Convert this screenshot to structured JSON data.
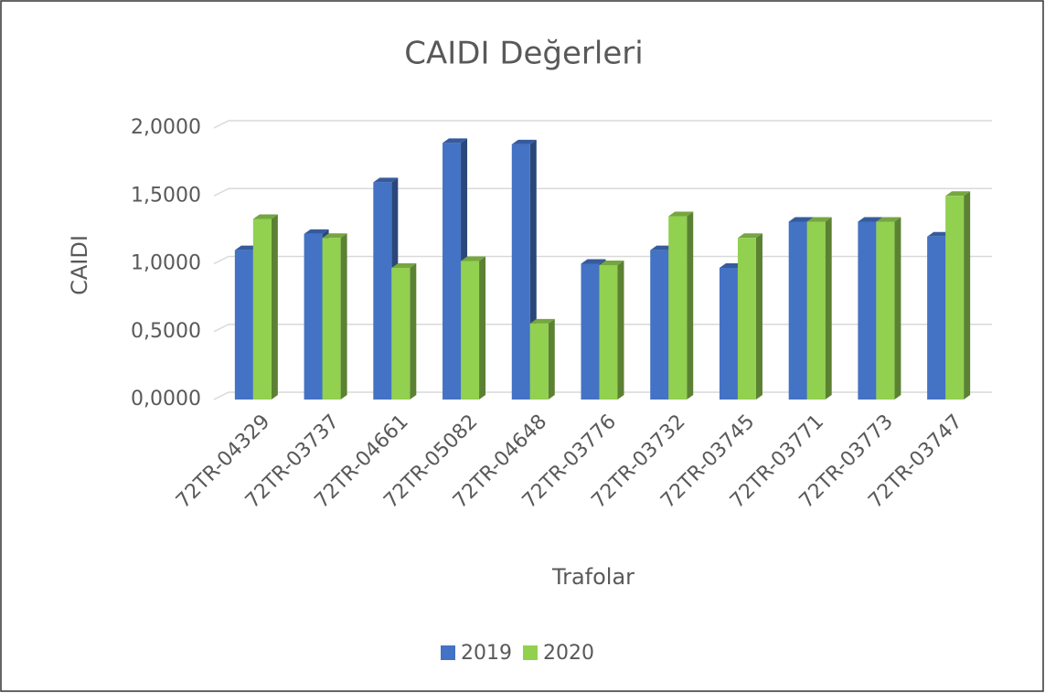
{
  "chart_data": {
    "type": "bar3d",
    "title": "CAIDI Değerleri",
    "x_label": "Trafolar",
    "y_label": "CAIDI",
    "categories": [
      "72TR-04329",
      "72TR-03737",
      "72TR-04661",
      "72TR-05082",
      "72TR-04648",
      "72TR-03776",
      "72TR-03732",
      "72TR-03745",
      "72TR-03771",
      "72TR-03773",
      "72TR-03747"
    ],
    "series": [
      {
        "name": "2019",
        "color": "#4472c4",
        "values": [
          1.1,
          1.22,
          1.6,
          1.89,
          1.88,
          1.0,
          1.1,
          0.97,
          1.31,
          1.31,
          1.2
        ]
      },
      {
        "name": "2020",
        "color": "#92d050",
        "values": [
          1.33,
          1.19,
          0.97,
          1.02,
          0.56,
          0.99,
          1.35,
          1.19,
          1.31,
          1.31,
          1.5
        ]
      }
    ],
    "ylim": [
      0,
      2
    ],
    "yticks": [
      {
        "value": 0,
        "label": "0,0000"
      },
      {
        "value": 0.5,
        "label": "0,5000"
      },
      {
        "value": 1,
        "label": "1,0000"
      },
      {
        "value": 1.5,
        "label": "1,5000"
      },
      {
        "value": 2,
        "label": "2,0000"
      }
    ],
    "grid": true,
    "legend": "bottom"
  }
}
